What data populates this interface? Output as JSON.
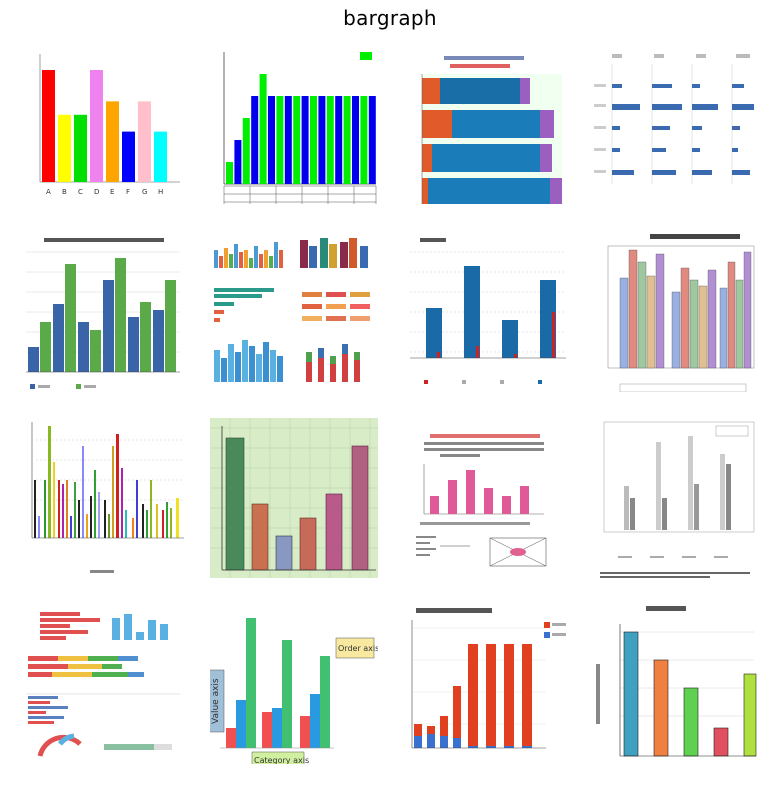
{
  "page": {
    "title": "bargraph"
  },
  "tiles": [
    {
      "id": 1,
      "letters": [
        "A",
        "B",
        "C",
        "D",
        "E",
        "F",
        "G",
        "H"
      ],
      "values": [
        10,
        6,
        6,
        10,
        7.2,
        4.5,
        7.2,
        4.5
      ],
      "colors": [
        "#ff0000",
        "#ffff00",
        "#00e000",
        "#ee82ee",
        "#ffa500",
        "#0000ff",
        "#ffc0cb",
        "#00ffff"
      ]
    },
    {
      "id": 2,
      "values": [
        1,
        2,
        3,
        4,
        5,
        4,
        4,
        4,
        4,
        4,
        4,
        4,
        4,
        4,
        4,
        4,
        4,
        4
      ],
      "colors": [
        "#00ee00",
        "#0000ee"
      ]
    },
    {
      "id": 3
    },
    {
      "id": 4
    },
    {
      "id": 5
    },
    {
      "id": 6
    },
    {
      "id": 7
    },
    {
      "id": 8
    },
    {
      "id": 9
    },
    {
      "id": 10
    },
    {
      "id": 11
    },
    {
      "id": 12
    },
    {
      "id": 13
    },
    {
      "id": 14,
      "label_left": "Value axis",
      "label_right": "Order axis",
      "label_bottom": "Category axis"
    },
    {
      "id": 15
    },
    {
      "id": 16
    }
  ]
}
